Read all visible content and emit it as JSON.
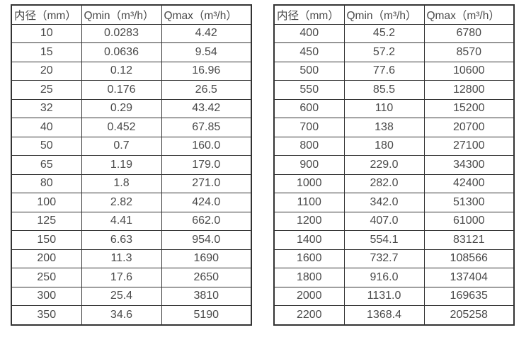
{
  "headers": {
    "diameter": "内径（mm）",
    "qmin": "Qmin（m³/h）",
    "qmax": "Qmax（m³/h）"
  },
  "tables": {
    "left": {
      "rows": [
        [
          "10",
          "0.0283",
          "4.42"
        ],
        [
          "15",
          "0.0636",
          "9.54"
        ],
        [
          "20",
          "0.12",
          "16.96"
        ],
        [
          "25",
          "0.176",
          "26.5"
        ],
        [
          "32",
          "0.29",
          "43.42"
        ],
        [
          "40",
          "0.452",
          "67.85"
        ],
        [
          "50",
          "0.7",
          "160.0"
        ],
        [
          "65",
          "1.19",
          "179.0"
        ],
        [
          "80",
          "1.8",
          "271.0"
        ],
        [
          "100",
          "2.82",
          "424.0"
        ],
        [
          "125",
          "4.41",
          "662.0"
        ],
        [
          "150",
          "6.63",
          "954.0"
        ],
        [
          "200",
          "11.3",
          "1690"
        ],
        [
          "250",
          "17.6",
          "2650"
        ],
        [
          "300",
          "25.4",
          "3810"
        ],
        [
          "350",
          "34.6",
          "5190"
        ]
      ]
    },
    "right": {
      "rows": [
        [
          "400",
          "45.2",
          "6780"
        ],
        [
          "450",
          "57.2",
          "8570"
        ],
        [
          "500",
          "77.6",
          "10600"
        ],
        [
          "550",
          "85.5",
          "12800"
        ],
        [
          "600",
          "110",
          "15200"
        ],
        [
          "700",
          "138",
          "20700"
        ],
        [
          "800",
          "180",
          "27100"
        ],
        [
          "900",
          "229.0",
          "34300"
        ],
        [
          "1000",
          "282.0",
          "42400"
        ],
        [
          "1100",
          "342.0",
          "51300"
        ],
        [
          "1200",
          "407.0",
          "61000"
        ],
        [
          "1400",
          "554.1",
          "83121"
        ],
        [
          "1600",
          "732.7",
          "108566"
        ],
        [
          "1800",
          "916.0",
          "137404"
        ],
        [
          "2000",
          "1131.0",
          "169635"
        ],
        [
          "2200",
          "1368.4",
          "205258"
        ]
      ]
    }
  },
  "colors": {
    "border": "#333333",
    "text": "#4a4a4a",
    "background": "#ffffff"
  }
}
